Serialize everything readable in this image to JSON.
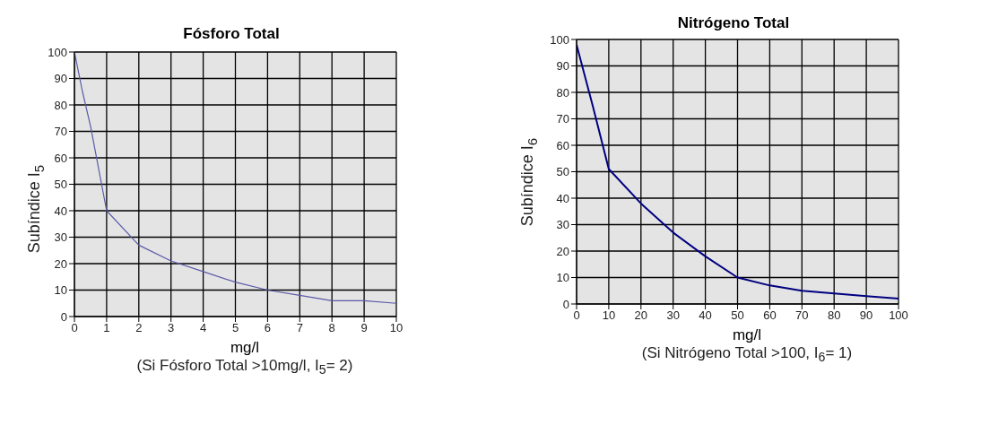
{
  "chart_data": [
    {
      "type": "line",
      "title": "Fósforo Total",
      "xlabel": "mg/l",
      "ylabel": "Subíndice  I$_{5}$",
      "annotations": [
        "(Si Fósforo Total  >10mg/l, I$_{5}$= 2)"
      ],
      "x": [
        0,
        0.25,
        0.5,
        1,
        2,
        3,
        4,
        5,
        6,
        7,
        8,
        9,
        10
      ],
      "series": [
        {
          "color": "#5a5aa8",
          "values": [
            100,
            85,
            72,
            40,
            27,
            21,
            17,
            13,
            10,
            8,
            6,
            6,
            5
          ]
        }
      ],
      "xlim": [
        0,
        10
      ],
      "xticks": [
        0,
        1,
        2,
        3,
        4,
        5,
        6,
        7,
        8,
        9,
        10
      ],
      "ylim": [
        0,
        100
      ],
      "yticks": [
        0,
        10,
        20,
        30,
        40,
        50,
        60,
        70,
        80,
        90,
        100
      ],
      "grid": true
    },
    {
      "type": "line",
      "title": "Nitrógeno Total",
      "xlabel": "mg/l",
      "ylabel": "Subíndice  I$_{6}$",
      "annotations": [
        "(Si Nitrógeno Total  >100, I$_{6}$= 1)"
      ],
      "x": [
        0,
        5,
        10,
        20,
        30,
        40,
        50,
        60,
        70,
        80,
        90,
        100
      ],
      "series": [
        {
          "color": "#000080",
          "values": [
            98,
            75,
            51,
            38,
            27,
            18,
            10,
            7,
            5,
            4,
            3,
            2
          ]
        }
      ],
      "xlim": [
        0,
        100
      ],
      "xticks": [
        0,
        10,
        20,
        30,
        40,
        50,
        60,
        70,
        80,
        90,
        100
      ],
      "ylim": [
        0,
        100
      ],
      "yticks": [
        0,
        10,
        20,
        30,
        40,
        50,
        60,
        70,
        80,
        90,
        100
      ],
      "grid": true
    }
  ]
}
